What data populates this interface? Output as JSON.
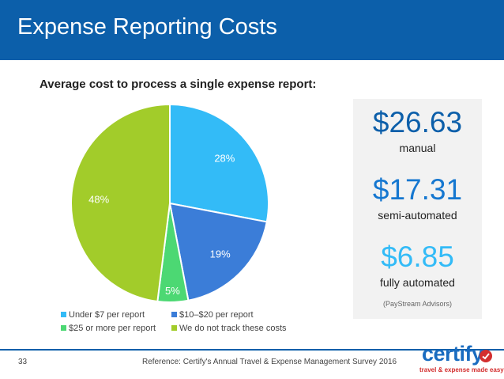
{
  "header": {
    "title": "Expense Reporting Costs"
  },
  "chart_data": {
    "type": "pie",
    "title": "Average cost to process a single expense report:",
    "categories": [
      "Under $7 per report",
      "$10–$20 per report",
      "$25 or more per report",
      "We do not track these costs"
    ],
    "values": [
      28,
      19,
      5,
      48
    ],
    "labels": [
      "28%",
      "19%",
      "5%",
      "48%"
    ],
    "colors": [
      "#33bbf7",
      "#3b7dd8",
      "#4cd873",
      "#a2cc2a"
    ]
  },
  "stats": [
    {
      "value": "$26.63",
      "label": "manual",
      "color": "#0c5faa"
    },
    {
      "value": "$17.31",
      "label": "semi-automated",
      "color": "#1577d0"
    },
    {
      "value": "$6.85",
      "label": "fully automated",
      "color": "#33bbf7"
    }
  ],
  "source": "(PayStream Advisors)",
  "footer": {
    "page_number": "33",
    "reference": "Reference: Certify's Annual Travel & Expense Management Survey 2016"
  },
  "logo": {
    "name": "certify",
    "tagline": "travel & expense made easy"
  }
}
